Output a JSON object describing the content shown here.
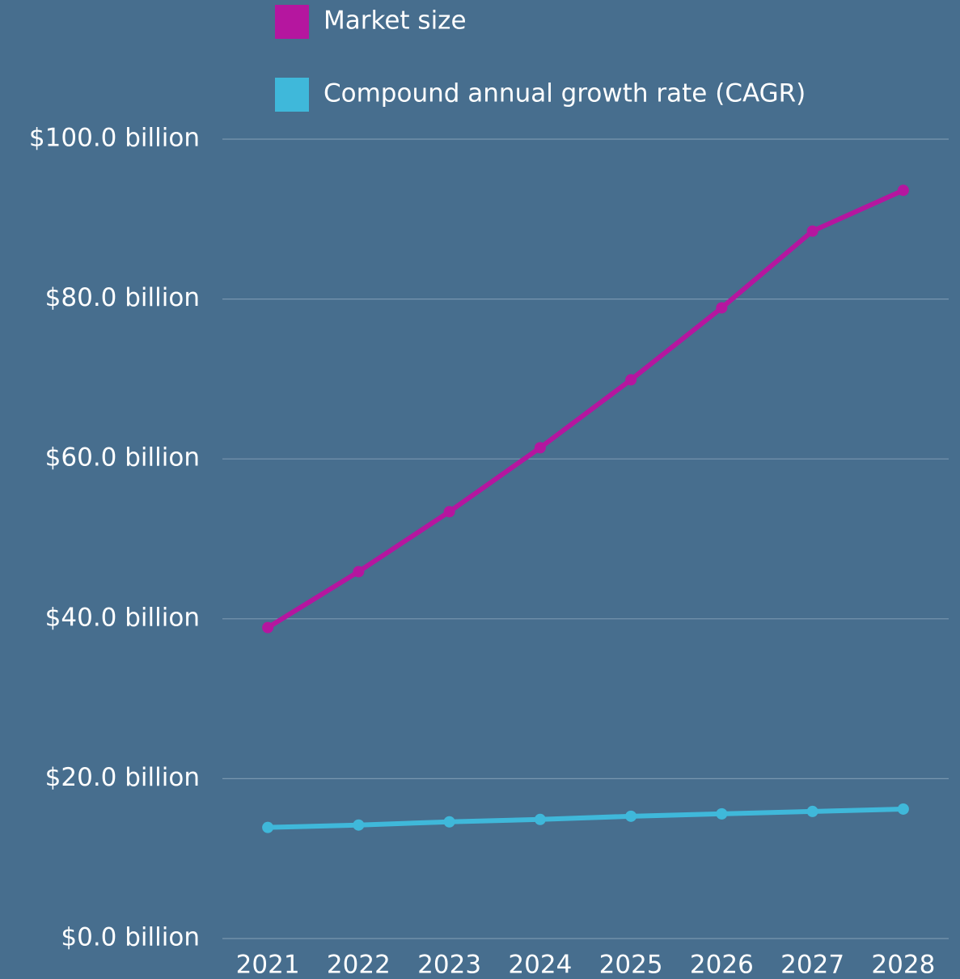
{
  "chart_data": {
    "type": "line",
    "categories": [
      "2021",
      "2022",
      "2023",
      "2024",
      "2025",
      "2026",
      "2027",
      "2028"
    ],
    "series": [
      {
        "name": "Market size",
        "color": "#b5169f",
        "values": [
          38.9,
          45.9,
          53.4,
          61.4,
          69.9,
          78.9,
          88.5,
          93.6
        ]
      },
      {
        "name": "Compound annual growth rate (CAGR)",
        "color": "#3fb8da",
        "values": [
          13.9,
          14.2,
          14.6,
          14.9,
          15.3,
          15.6,
          15.9,
          16.2
        ]
      }
    ],
    "ylim": [
      0,
      100
    ],
    "yticks": [
      {
        "value": 0,
        "label": "$0.0 billion"
      },
      {
        "value": 20,
        "label": "$20.0 billion"
      },
      {
        "value": 40,
        "label": "$40.0 billion"
      },
      {
        "value": 60,
        "label": "$60.0 billion"
      },
      {
        "value": 80,
        "label": "$80.0 billion"
      },
      {
        "value": 100,
        "label": "$100.0 billion"
      }
    ],
    "grid": true
  }
}
